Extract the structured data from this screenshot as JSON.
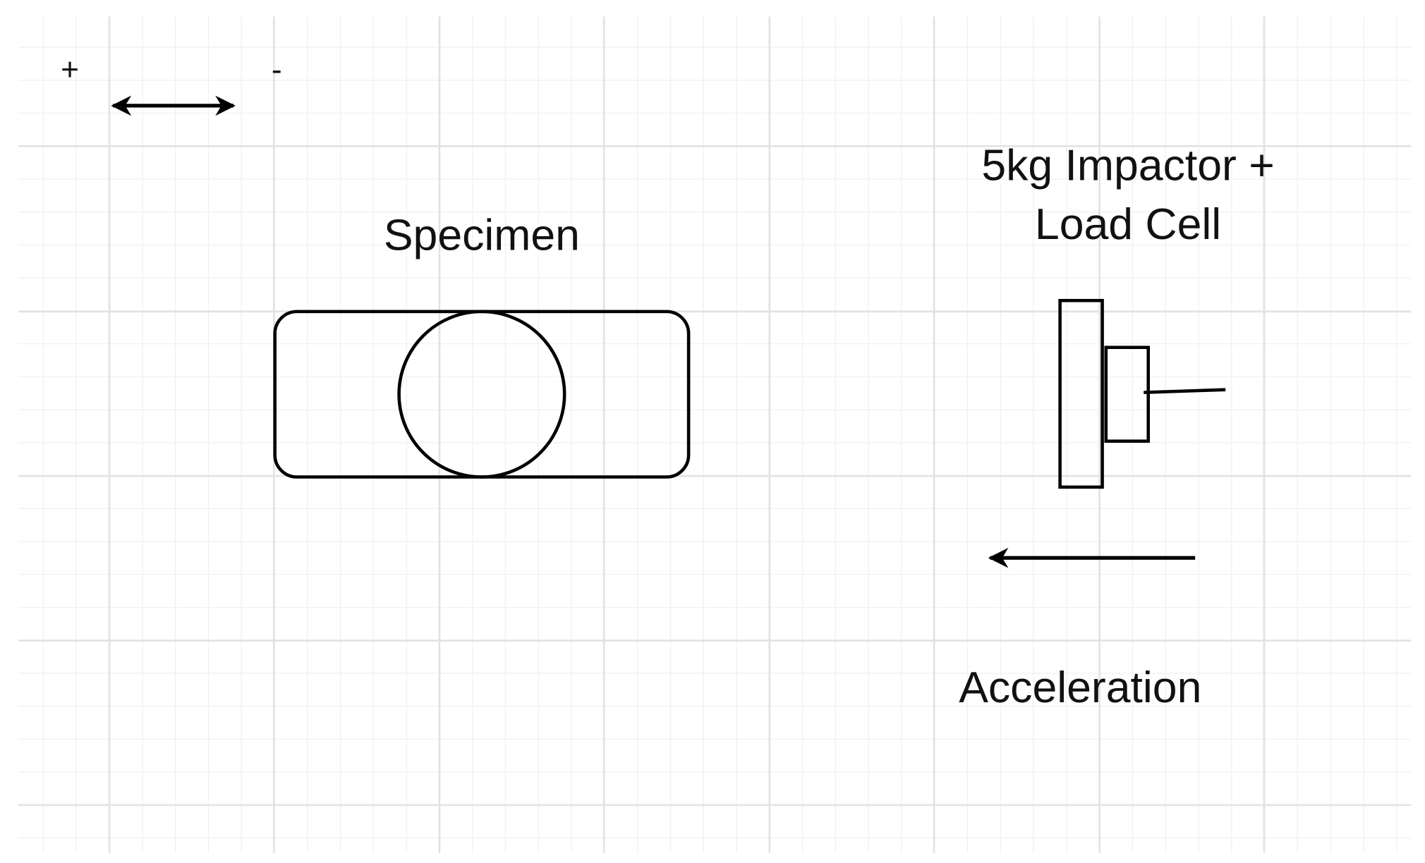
{
  "direction_key": {
    "plus": "+",
    "minus": "-"
  },
  "specimen": {
    "label": "Specimen"
  },
  "impactor": {
    "label_line1": "5kg Impactor +",
    "label_line2": "Load Cell"
  },
  "motion": {
    "label": "Acceleration"
  },
  "colors": {
    "stroke": "#000000",
    "grid_major": "#e2e2e2",
    "grid_minor": "#f1f1f1",
    "background": "#ffffff"
  }
}
